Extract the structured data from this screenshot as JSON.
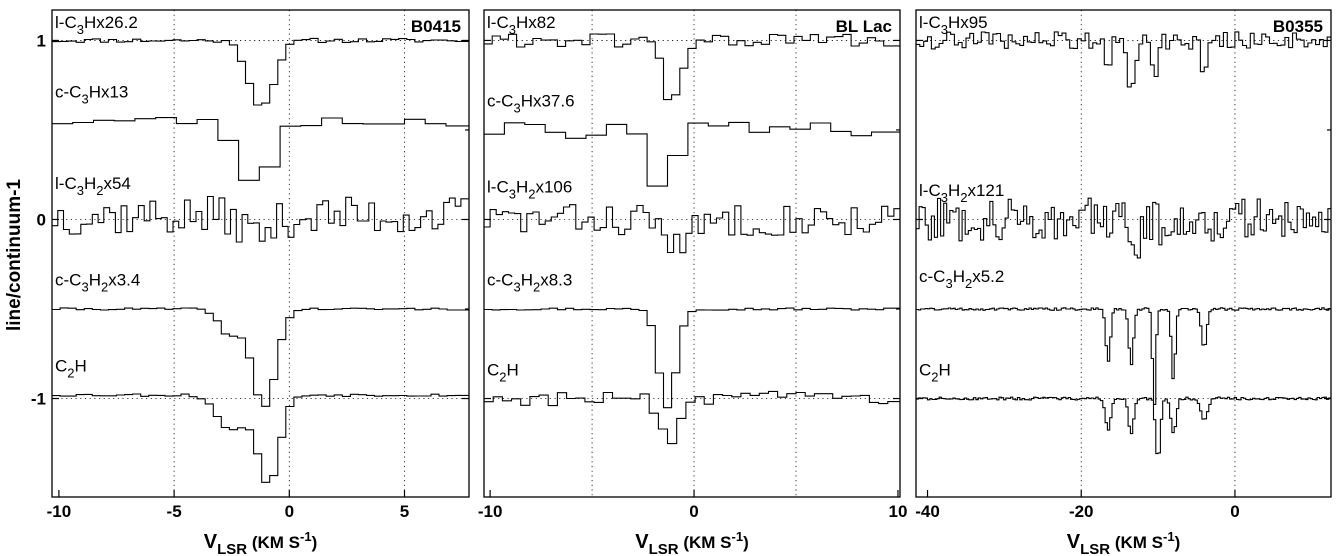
{
  "figure": {
    "ylabel": "line/continuum-1",
    "xlabel": {
      "main": "V",
      "sub": "LSR",
      "rest": "(KM S",
      "sup": "-1",
      "close": ")"
    }
  },
  "chart_data": [
    {
      "type": "line",
      "title": "B0415",
      "xlim": [
        -10.3,
        7.8
      ],
      "ylim": [
        -1.55,
        1.17
      ],
      "xticks": [
        -10,
        -5,
        0,
        5
      ],
      "xgrid": [
        -5,
        0,
        5
      ],
      "ygrid": [
        1,
        0,
        -1
      ],
      "yticks": [
        1,
        0,
        -1
      ],
      "series": [
        {
          "label": {
            "pre": "l-C",
            "s1": "3",
            "mid": "Hx26.2",
            "s2": "",
            "post": ""
          },
          "baseline": 1.0,
          "step": 0.35,
          "noise": 0.012,
          "seed": 11,
          "features": [
            {
              "v": -1.2,
              "depth": 0.37,
              "width": 1.3
            }
          ]
        },
        {
          "label": {
            "pre": "c-C",
            "s1": "3",
            "mid": "Hx13",
            "s2": "",
            "post": ""
          },
          "baseline": 0.55,
          "step": 0.9,
          "noise": 0.03,
          "seed": 23,
          "features": [
            {
              "v": -1.5,
              "depth": 0.38,
              "width": 1.6
            }
          ]
        },
        {
          "label": {
            "pre": "l-C",
            "s1": "3",
            "mid": "H",
            "s2": "2",
            "post": "x54"
          },
          "baseline": 0.02,
          "step": 0.25,
          "noise": 0.11,
          "seed": 37,
          "features": [
            {
              "v": -1.3,
              "depth": 0.1,
              "width": 1.5
            }
          ]
        },
        {
          "label": {
            "pre": "c-C",
            "s1": "3",
            "mid": "H",
            "s2": "2",
            "post": "x3.4"
          },
          "baseline": -0.5,
          "step": 0.35,
          "noise": 0.006,
          "seed": 41,
          "features": [
            {
              "v": -1.1,
              "depth": 0.55,
              "width": 1.2
            },
            {
              "v": -2.6,
              "depth": 0.15,
              "width": 1.0
            }
          ]
        },
        {
          "label": {
            "pre": "C",
            "s1": "2",
            "mid": "H",
            "s2": "",
            "post": ""
          },
          "baseline": -0.98,
          "step": 0.35,
          "noise": 0.008,
          "seed": 53,
          "features": [
            {
              "v": -0.9,
              "depth": 0.5,
              "width": 1.1
            },
            {
              "v": -2.5,
              "depth": 0.2,
              "width": 1.4
            }
          ]
        }
      ]
    },
    {
      "type": "line",
      "title": "BL Lac",
      "xlim": [
        -10.3,
        10.1
      ],
      "ylim": [
        -1.55,
        1.17
      ],
      "xticks": [
        -10,
        0,
        10
      ],
      "xgrid": [
        -5,
        0,
        5
      ],
      "ygrid": [
        1,
        0,
        -1
      ],
      "yticks": [],
      "series": [
        {
          "label": {
            "pre": "l-C",
            "s1": "3",
            "mid": "Hx82",
            "s2": "",
            "post": ""
          },
          "baseline": 1.0,
          "step": 0.4,
          "noise": 0.04,
          "seed": 61,
          "features": [
            {
              "v": -1.1,
              "depth": 0.35,
              "width": 1.0
            }
          ]
        },
        {
          "label": {
            "pre": "c-C",
            "s1": "3",
            "mid": "Hx37.6",
            "s2": "",
            "post": ""
          },
          "baseline": 0.5,
          "step": 1.0,
          "noise": 0.05,
          "seed": 73,
          "features": [
            {
              "v": -1.5,
              "depth": 0.38,
              "width": 1.3
            }
          ]
        },
        {
          "label": {
            "pre": "l-C",
            "s1": "3",
            "mid": "H",
            "s2": "2",
            "post": "x106"
          },
          "baseline": 0.0,
          "step": 0.3,
          "noise": 0.09,
          "seed": 83,
          "features": [
            {
              "v": -0.7,
              "depth": 0.16,
              "width": 1.3
            }
          ]
        },
        {
          "label": {
            "pre": "c-C",
            "s1": "3",
            "mid": "H",
            "s2": "2",
            "post": "x8.3"
          },
          "baseline": -0.5,
          "step": 0.4,
          "noise": 0.006,
          "seed": 97,
          "features": [
            {
              "v": -1.3,
              "depth": 0.55,
              "width": 1.0
            }
          ]
        },
        {
          "label": {
            "pre": "C",
            "s1": "2",
            "mid": "H",
            "s2": "",
            "post": ""
          },
          "baseline": -1.0,
          "step": 0.45,
          "noise": 0.04,
          "seed": 103,
          "features": [
            {
              "v": -1.2,
              "depth": 0.28,
              "width": 1.0
            }
          ]
        }
      ]
    },
    {
      "type": "line",
      "title": "B0355",
      "xlim": [
        -41.5,
        12.5
      ],
      "ylim": [
        -1.55,
        1.17
      ],
      "xticks": [
        -40,
        -20,
        0
      ],
      "xgrid": [
        -20,
        0
      ],
      "ygrid": [
        1,
        0,
        -1
      ],
      "yticks": [],
      "series": [
        {
          "label": {
            "pre": "l-C",
            "s1": "3",
            "mid": "Hx95",
            "s2": "",
            "post": ""
          },
          "baseline": 1.0,
          "step": 0.5,
          "noise": 0.05,
          "seed": 109,
          "features": [
            {
              "v": -13.5,
              "depth": 0.3,
              "width": 1.0
            },
            {
              "v": -10.5,
              "depth": 0.2,
              "width": 0.9
            },
            {
              "v": -16.5,
              "depth": 0.12,
              "width": 0.9
            },
            {
              "v": -4.0,
              "depth": 0.2,
              "width": 0.9
            }
          ]
        },
        {
          "label": {
            "pre": "l-C",
            "s1": "3",
            "mid": "H",
            "s2": "2",
            "post": "x121"
          },
          "baseline": 0.0,
          "step": 0.4,
          "noise": 0.12,
          "seed": 127,
          "features": [
            {
              "v": -13.0,
              "depth": 0.15,
              "width": 1.5
            },
            {
              "v": -9.0,
              "depth": 0.1,
              "width": 1.2
            }
          ]
        },
        {
          "label": {
            "pre": "c-C",
            "s1": "3",
            "mid": "H",
            "s2": "2",
            "post": "x5.2"
          },
          "baseline": -0.5,
          "step": 0.3,
          "noise": 0.007,
          "seed": 131,
          "features": [
            {
              "v": -16.5,
              "depth": 0.3,
              "width": 0.7
            },
            {
              "v": -13.5,
              "depth": 0.32,
              "width": 0.7
            },
            {
              "v": -10.5,
              "depth": 0.55,
              "width": 0.5
            },
            {
              "v": -8.0,
              "depth": 0.4,
              "width": 0.6
            },
            {
              "v": -4.0,
              "depth": 0.22,
              "width": 0.8
            }
          ]
        },
        {
          "label": {
            "pre": "C",
            "s1": "2",
            "mid": "H",
            "s2": "",
            "post": ""
          },
          "baseline": -1.0,
          "step": 0.3,
          "noise": 0.008,
          "seed": 137,
          "features": [
            {
              "v": -16.5,
              "depth": 0.18,
              "width": 0.8
            },
            {
              "v": -13.5,
              "depth": 0.2,
              "width": 0.8
            },
            {
              "v": -10.0,
              "depth": 0.35,
              "width": 0.7
            },
            {
              "v": -8.0,
              "depth": 0.2,
              "width": 0.8
            },
            {
              "v": -4.0,
              "depth": 0.12,
              "width": 1.0
            }
          ]
        }
      ]
    }
  ]
}
